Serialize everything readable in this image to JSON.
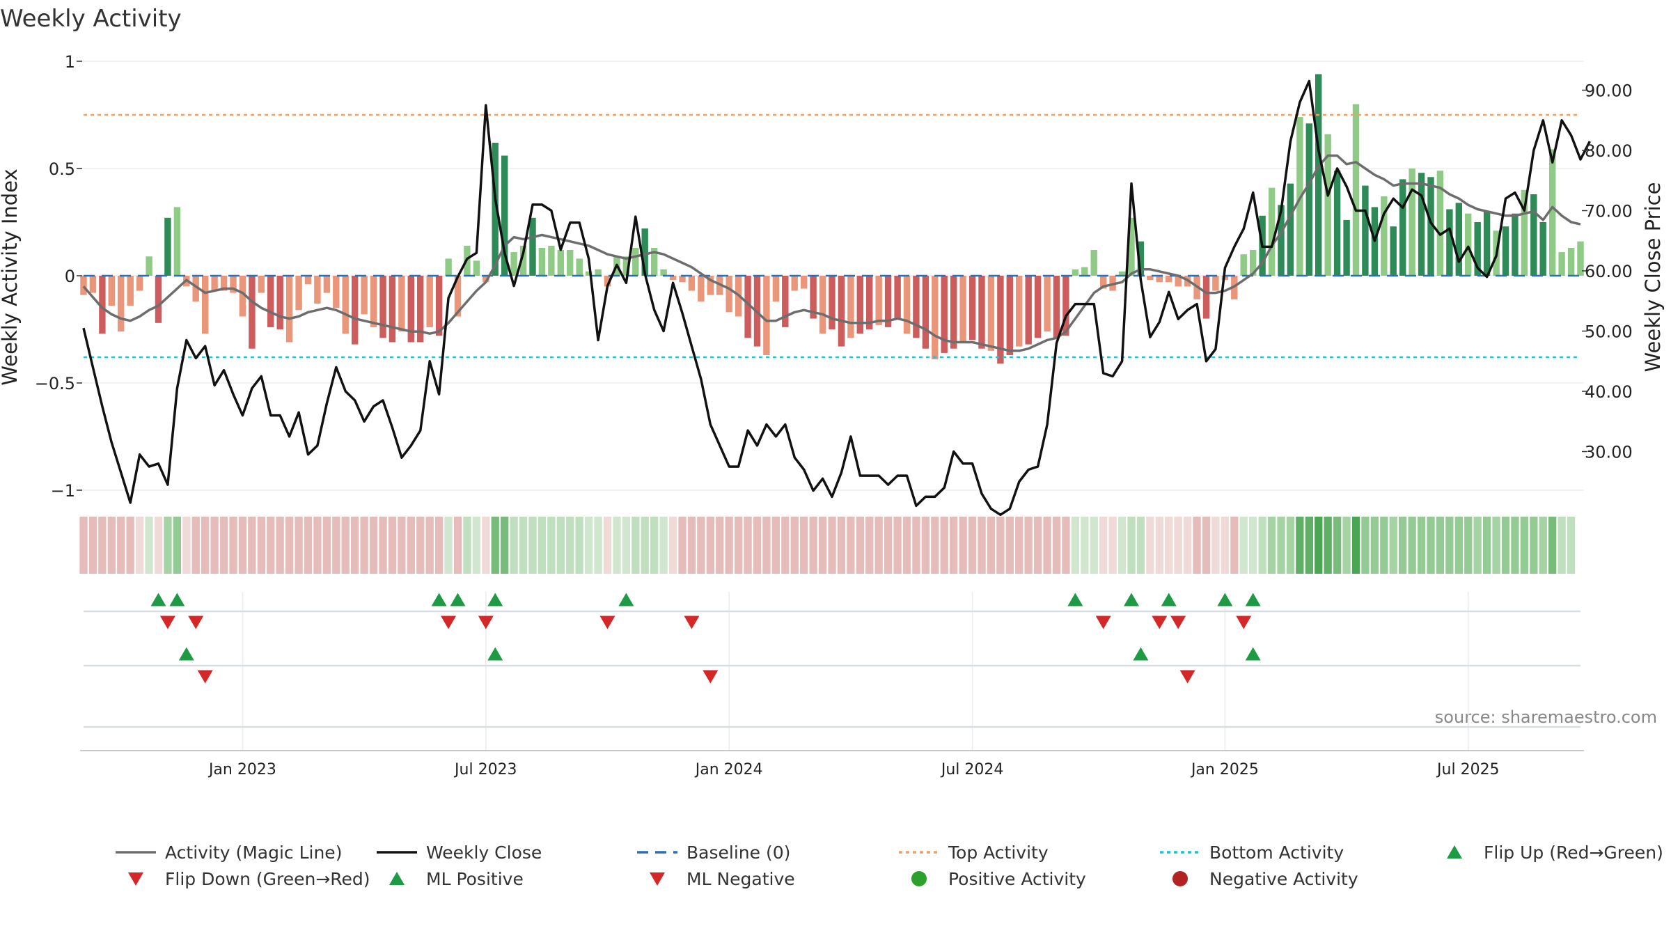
{
  "chart_data": {
    "type": "bar",
    "title": "Weekly Activity",
    "ylabel": "Weekly Activity Index",
    "y2label": "Weekly Close Price",
    "ylim": [
      -1,
      1
    ],
    "y2lim": [
      22,
      95
    ],
    "yticks": [
      {
        "v": 1,
        "label": "1"
      },
      {
        "v": 0.5,
        "label": "0.5"
      },
      {
        "v": 0,
        "label": "0"
      },
      {
        "v": -0.5,
        "label": "−0.5"
      },
      {
        "v": -1,
        "label": "−1"
      }
    ],
    "y2ticks": [
      {
        "v": 90,
        "label": "90.00"
      },
      {
        "v": 80,
        "label": "80.00"
      },
      {
        "v": 70,
        "label": "70.00"
      },
      {
        "v": 60,
        "label": "60.00"
      },
      {
        "v": 50,
        "label": "50.00"
      },
      {
        "v": 40,
        "label": "40.00"
      },
      {
        "v": 30,
        "label": "30.00"
      }
    ],
    "xticks": [
      {
        "week": 17,
        "label": "Jan 2023"
      },
      {
        "week": 43,
        "label": "Jul 2023"
      },
      {
        "week": 69,
        "label": "Jan 2024"
      },
      {
        "week": 95,
        "label": "Jul 2024"
      },
      {
        "week": 122,
        "label": "Jan 2025"
      },
      {
        "week": 148,
        "label": "Jul 2025"
      }
    ],
    "top_activity": 0.75,
    "bottom_activity": -0.38,
    "activity": [
      -0.09,
      -0.08,
      -0.27,
      -0.14,
      -0.26,
      -0.14,
      -0.07,
      0.09,
      -0.22,
      0.27,
      0.32,
      -0.05,
      -0.12,
      -0.27,
      -0.07,
      -0.07,
      -0.08,
      -0.19,
      -0.34,
      -0.08,
      -0.24,
      -0.25,
      -0.31,
      -0.16,
      -0.04,
      -0.13,
      -0.08,
      -0.15,
      -0.27,
      -0.32,
      -0.18,
      -0.24,
      -0.29,
      -0.31,
      -0.26,
      -0.31,
      -0.31,
      -0.24,
      -0.28,
      0.08,
      -0.19,
      0.14,
      0.07,
      -0.03,
      0.62,
      0.56,
      0.11,
      0.14,
      0.27,
      0.13,
      0.14,
      0.12,
      0.12,
      0.08,
      0.02,
      0.03,
      -0.05,
      0.09,
      0.09,
      0.13,
      0.22,
      0.13,
      0.03,
      -0.02,
      -0.03,
      -0.07,
      -0.12,
      -0.09,
      -0.09,
      -0.17,
      -0.19,
      -0.29,
      -0.33,
      -0.37,
      -0.12,
      -0.24,
      -0.07,
      -0.06,
      -0.2,
      -0.27,
      -0.25,
      -0.33,
      -0.29,
      -0.27,
      -0.25,
      -0.23,
      -0.24,
      -0.2,
      -0.27,
      -0.29,
      -0.34,
      -0.39,
      -0.36,
      -0.34,
      -0.31,
      -0.3,
      -0.34,
      -0.35,
      -0.41,
      -0.37,
      -0.33,
      -0.32,
      -0.29,
      -0.26,
      -0.29,
      -0.28,
      0.03,
      0.04,
      0.12,
      -0.06,
      -0.07,
      0.02,
      0.27,
      0.16,
      -0.02,
      -0.03,
      -0.03,
      -0.05,
      -0.05,
      -0.11,
      -0.2,
      -0.07,
      -0.02,
      -0.11,
      0.1,
      0.12,
      0.28,
      0.41,
      0.33,
      0.43,
      0.74,
      0.71,
      0.94,
      0.66,
      0.49,
      0.26,
      0.8,
      0.42,
      0.32,
      0.37,
      0.23,
      0.45,
      0.5,
      0.48,
      0.46,
      0.49,
      0.31,
      0.34,
      0.29,
      0.25,
      0.3,
      0.21,
      0.23,
      0.29,
      0.4,
      0.38,
      0.25,
      0.59,
      0.11,
      0.13,
      0.16
    ],
    "magic_line": [
      -0.05,
      -0.1,
      -0.15,
      -0.18,
      -0.2,
      -0.21,
      -0.19,
      -0.16,
      -0.14,
      -0.1,
      -0.06,
      -0.02,
      -0.05,
      -0.08,
      -0.07,
      -0.06,
      -0.06,
      -0.08,
      -0.12,
      -0.15,
      -0.17,
      -0.19,
      -0.2,
      -0.19,
      -0.17,
      -0.16,
      -0.15,
      -0.16,
      -0.18,
      -0.2,
      -0.21,
      -0.22,
      -0.23,
      -0.24,
      -0.25,
      -0.26,
      -0.26,
      -0.27,
      -0.26,
      -0.22,
      -0.17,
      -0.12,
      -0.07,
      -0.03,
      0.05,
      0.14,
      0.18,
      0.17,
      0.18,
      0.19,
      0.18,
      0.17,
      0.16,
      0.15,
      0.14,
      0.12,
      0.1,
      0.09,
      0.08,
      0.09,
      0.1,
      0.11,
      0.1,
      0.08,
      0.06,
      0.04,
      0.01,
      -0.02,
      -0.04,
      -0.06,
      -0.09,
      -0.13,
      -0.17,
      -0.21,
      -0.21,
      -0.19,
      -0.17,
      -0.16,
      -0.17,
      -0.18,
      -0.2,
      -0.21,
      -0.22,
      -0.22,
      -0.22,
      -0.21,
      -0.21,
      -0.2,
      -0.21,
      -0.23,
      -0.25,
      -0.28,
      -0.3,
      -0.31,
      -0.31,
      -0.31,
      -0.32,
      -0.33,
      -0.34,
      -0.35,
      -0.35,
      -0.34,
      -0.32,
      -0.3,
      -0.29,
      -0.26,
      -0.2,
      -0.14,
      -0.08,
      -0.05,
      -0.04,
      -0.03,
      0.01,
      0.03,
      0.03,
      0.02,
      0.01,
      0.0,
      -0.02,
      -0.05,
      -0.08,
      -0.08,
      -0.07,
      -0.05,
      -0.02,
      0.01,
      0.06,
      0.14,
      0.2,
      0.28,
      0.36,
      0.43,
      0.51,
      0.56,
      0.56,
      0.52,
      0.53,
      0.5,
      0.47,
      0.45,
      0.42,
      0.43,
      0.43,
      0.43,
      0.42,
      0.41,
      0.38,
      0.36,
      0.33,
      0.31,
      0.3,
      0.29,
      0.28,
      0.28,
      0.29,
      0.3,
      0.26,
      0.32,
      0.28,
      0.25,
      0.24
    ],
    "weekly_close": [
      50.5,
      44.0,
      37.5,
      31.5,
      26.5,
      21.5,
      29.5,
      27.5,
      28.0,
      24.5,
      40.5,
      48.5,
      45.5,
      47.5,
      41.0,
      43.5,
      39.5,
      36.0,
      40.5,
      42.5,
      36.0,
      36.0,
      32.5,
      36.5,
      29.5,
      31.0,
      38.0,
      44.0,
      40.0,
      38.5,
      35.0,
      37.5,
      38.5,
      34.0,
      29.0,
      31.0,
      33.5,
      45.0,
      39.5,
      55.5,
      59.0,
      62.0,
      63.0,
      87.5,
      72.0,
      63.0,
      57.5,
      63.0,
      71.0,
      71.0,
      70.0,
      63.5,
      68.0,
      68.0,
      62.0,
      48.5,
      57.5,
      61.0,
      58.0,
      69.0,
      59.5,
      53.5,
      50.0,
      58.0,
      53.0,
      47.5,
      42.0,
      34.5,
      31.0,
      27.5,
      27.5,
      33.5,
      31.0,
      34.5,
      32.5,
      34.5,
      29.0,
      27.0,
      23.5,
      25.5,
      22.5,
      26.5,
      32.5,
      26.0,
      26.0,
      26.0,
      24.5,
      26.0,
      26.0,
      21.0,
      22.5,
      22.5,
      24.0,
      30.0,
      28.0,
      28.0,
      23.0,
      20.5,
      19.5,
      20.5,
      25.0,
      27.0,
      27.5,
      34.5,
      48.0,
      52.5,
      54.5,
      54.5,
      54.5,
      43.0,
      42.5,
      45.0,
      74.5,
      58.5,
      49.0,
      51.5,
      56.5,
      52.0,
      53.5,
      54.5,
      45.0,
      47.0,
      60.5,
      64.0,
      67.0,
      73.0,
      64.0,
      64.0,
      70.0,
      81.5,
      88.0,
      91.5,
      80.0,
      72.5,
      77.0,
      74.0,
      70.0,
      70.0,
      65.0,
      69.5,
      72.0,
      70.5,
      73.5,
      72.5,
      68.0,
      66.0,
      67.0,
      61.5,
      64.0,
      60.5,
      59.0,
      62.5,
      72.0,
      73.0,
      70.0,
      80.0,
      85.0,
      78.0,
      85.0,
      82.5,
      78.5,
      81.5
    ],
    "strip": [
      {
        "w": 0,
        "c": "#e5bcba"
      },
      {
        "w": 1,
        "c": "#e5bcba"
      },
      {
        "w": 2,
        "c": "#e5bcba"
      },
      {
        "w": 3,
        "c": "#e5bcba"
      },
      {
        "w": 4,
        "c": "#e5bcba"
      },
      {
        "w": 5,
        "c": "#e5bcba"
      },
      {
        "w": 6,
        "c": "#efdad7"
      },
      {
        "w": 7,
        "c": "#d0e6cf"
      },
      {
        "w": 8,
        "c": "#efdad7"
      },
      {
        "w": 9,
        "c": "#a6d3a4"
      },
      {
        "w": 10,
        "c": "#94cb95"
      },
      {
        "w": 11,
        "c": "#efdad7"
      },
      {
        "w": 12,
        "c": "#e5bcba"
      },
      {
        "w": 13,
        "c": "#e5bcba"
      },
      {
        "w": 14,
        "c": "#e5bcba"
      },
      {
        "w": 15,
        "c": "#e5bcba"
      },
      {
        "w": 16,
        "c": "#e5bcba"
      },
      {
        "w": 17,
        "c": "#e5bcba"
      },
      {
        "w": 18,
        "c": "#e5bcba"
      },
      {
        "w": 19,
        "c": "#e5bcba"
      },
      {
        "w": 20,
        "c": "#e5bcba"
      },
      {
        "w": 21,
        "c": "#e5bcba"
      },
      {
        "w": 22,
        "c": "#e5bcba"
      },
      {
        "w": 23,
        "c": "#e5bcba"
      },
      {
        "w": 24,
        "c": "#e5bcba"
      },
      {
        "w": 25,
        "c": "#e5bcba"
      },
      {
        "w": 26,
        "c": "#e5bcba"
      },
      {
        "w": 27,
        "c": "#e5bcba"
      },
      {
        "w": 28,
        "c": "#e5bcba"
      },
      {
        "w": 29,
        "c": "#e5bcba"
      },
      {
        "w": 30,
        "c": "#e5bcba"
      },
      {
        "w": 31,
        "c": "#e5bcba"
      },
      {
        "w": 32,
        "c": "#e5bcba"
      },
      {
        "w": 33,
        "c": "#e5bcba"
      },
      {
        "w": 34,
        "c": "#e5bcba"
      },
      {
        "w": 35,
        "c": "#e5bcba"
      },
      {
        "w": 36,
        "c": "#e5bcba"
      },
      {
        "w": 37,
        "c": "#e5bcba"
      },
      {
        "w": 38,
        "c": "#e5bcba"
      },
      {
        "w": 39,
        "c": "#d0e6cf"
      },
      {
        "w": 40,
        "c": "#e5bcba"
      },
      {
        "w": 41,
        "c": "#bfdfbe"
      },
      {
        "w": 42,
        "c": "#d0e6cf"
      },
      {
        "w": 43,
        "c": "#efdad7"
      },
      {
        "w": 44,
        "c": "#78bb7b"
      },
      {
        "w": 45,
        "c": "#78bb7b"
      },
      {
        "w": 46,
        "c": "#bfdfbe"
      },
      {
        "w": 47,
        "c": "#bfdfbe"
      },
      {
        "w": 48,
        "c": "#bfdfbe"
      },
      {
        "w": 49,
        "c": "#bfdfbe"
      },
      {
        "w": 50,
        "c": "#bfdfbe"
      },
      {
        "w": 51,
        "c": "#bfdfbe"
      },
      {
        "w": 52,
        "c": "#bfdfbe"
      },
      {
        "w": 53,
        "c": "#bfdfbe"
      },
      {
        "w": 54,
        "c": "#d0e6cf"
      },
      {
        "w": 55,
        "c": "#d0e6cf"
      },
      {
        "w": 56,
        "c": "#efdad7"
      },
      {
        "w": 57,
        "c": "#d0e6cf"
      },
      {
        "w": 58,
        "c": "#d0e6cf"
      },
      {
        "w": 59,
        "c": "#bfdfbe"
      },
      {
        "w": 60,
        "c": "#bfdfbe"
      },
      {
        "w": 61,
        "c": "#bfdfbe"
      },
      {
        "w": 62,
        "c": "#d0e6cf"
      },
      {
        "w": 63,
        "c": "#efdad7"
      },
      {
        "w": 64,
        "c": "#e5bcba"
      },
      {
        "w": 65,
        "c": "#e5bcba"
      },
      {
        "w": 66,
        "c": "#e5bcba"
      },
      {
        "w": 67,
        "c": "#e5bcba"
      },
      {
        "w": 68,
        "c": "#e5bcba"
      },
      {
        "w": 69,
        "c": "#e5bcba"
      },
      {
        "w": 70,
        "c": "#e5bcba"
      },
      {
        "w": 71,
        "c": "#e5bcba"
      },
      {
        "w": 72,
        "c": "#e5bcba"
      },
      {
        "w": 73,
        "c": "#e5bcba"
      },
      {
        "w": 74,
        "c": "#e5bcba"
      },
      {
        "w": 75,
        "c": "#e5bcba"
      },
      {
        "w": 76,
        "c": "#e5bcba"
      },
      {
        "w": 77,
        "c": "#e5bcba"
      },
      {
        "w": 78,
        "c": "#e5bcba"
      },
      {
        "w": 79,
        "c": "#e5bcba"
      },
      {
        "w": 80,
        "c": "#e5bcba"
      },
      {
        "w": 81,
        "c": "#e5bcba"
      },
      {
        "w": 82,
        "c": "#e5bcba"
      },
      {
        "w": 83,
        "c": "#e5bcba"
      },
      {
        "w": 84,
        "c": "#e5bcba"
      },
      {
        "w": 85,
        "c": "#e5bcba"
      },
      {
        "w": 86,
        "c": "#e5bcba"
      },
      {
        "w": 87,
        "c": "#e5bcba"
      },
      {
        "w": 88,
        "c": "#e5bcba"
      },
      {
        "w": 89,
        "c": "#e5bcba"
      },
      {
        "w": 90,
        "c": "#e5bcba"
      },
      {
        "w": 91,
        "c": "#e5bcba"
      },
      {
        "w": 92,
        "c": "#e5bcba"
      },
      {
        "w": 93,
        "c": "#e5bcba"
      },
      {
        "w": 94,
        "c": "#e5bcba"
      },
      {
        "w": 95,
        "c": "#e5bcba"
      },
      {
        "w": 96,
        "c": "#e5bcba"
      },
      {
        "w": 97,
        "c": "#e5bcba"
      },
      {
        "w": 98,
        "c": "#e5bcba"
      },
      {
        "w": 99,
        "c": "#e5bcba"
      },
      {
        "w": 100,
        "c": "#e5bcba"
      },
      {
        "w": 101,
        "c": "#e5bcba"
      },
      {
        "w": 102,
        "c": "#e5bcba"
      },
      {
        "w": 103,
        "c": "#e5bcba"
      },
      {
        "w": 104,
        "c": "#e5bcba"
      },
      {
        "w": 105,
        "c": "#e5bcba"
      },
      {
        "w": 106,
        "c": "#d0e6cf"
      },
      {
        "w": 107,
        "c": "#d0e6cf"
      },
      {
        "w": 108,
        "c": "#d0e6cf"
      },
      {
        "w": 109,
        "c": "#efdad7"
      },
      {
        "w": 110,
        "c": "#efdad7"
      },
      {
        "w": 111,
        "c": "#d0e6cf"
      },
      {
        "w": 112,
        "c": "#bfdfbe"
      },
      {
        "w": 113,
        "c": "#bfdfbe"
      },
      {
        "w": 114,
        "c": "#efdad7"
      },
      {
        "w": 115,
        "c": "#efdad7"
      },
      {
        "w": 116,
        "c": "#efdad7"
      },
      {
        "w": 117,
        "c": "#efdad7"
      },
      {
        "w": 118,
        "c": "#efdad7"
      },
      {
        "w": 119,
        "c": "#e5bcba"
      },
      {
        "w": 120,
        "c": "#e5bcba"
      },
      {
        "w": 121,
        "c": "#efdad7"
      },
      {
        "w": 122,
        "c": "#efdad7"
      },
      {
        "w": 123,
        "c": "#e5bcba"
      },
      {
        "w": 124,
        "c": "#d0e6cf"
      },
      {
        "w": 125,
        "c": "#d0e6cf"
      },
      {
        "w": 126,
        "c": "#bfdfbe"
      },
      {
        "w": 127,
        "c": "#a6d3a4"
      },
      {
        "w": 128,
        "c": "#a6d3a4"
      },
      {
        "w": 129,
        "c": "#a6d3a4"
      },
      {
        "w": 130,
        "c": "#5faf66"
      },
      {
        "w": 131,
        "c": "#5faf66"
      },
      {
        "w": 132,
        "c": "#4aa653"
      },
      {
        "w": 133,
        "c": "#5faf66"
      },
      {
        "w": 134,
        "c": "#78bb7b"
      },
      {
        "w": 135,
        "c": "#a6d3a4"
      },
      {
        "w": 136,
        "c": "#4aa653"
      },
      {
        "w": 137,
        "c": "#94cb95"
      },
      {
        "w": 138,
        "c": "#94cb95"
      },
      {
        "w": 139,
        "c": "#94cb95"
      },
      {
        "w": 140,
        "c": "#a6d3a4"
      },
      {
        "w": 141,
        "c": "#94cb95"
      },
      {
        "w": 142,
        "c": "#94cb95"
      },
      {
        "w": 143,
        "c": "#94cb95"
      },
      {
        "w": 144,
        "c": "#94cb95"
      },
      {
        "w": 145,
        "c": "#94cb95"
      },
      {
        "w": 146,
        "c": "#94cb95"
      },
      {
        "w": 147,
        "c": "#94cb95"
      },
      {
        "w": 148,
        "c": "#94cb95"
      },
      {
        "w": 149,
        "c": "#a6d3a4"
      },
      {
        "w": 150,
        "c": "#94cb95"
      },
      {
        "w": 151,
        "c": "#a6d3a4"
      },
      {
        "w": 152,
        "c": "#94cb95"
      },
      {
        "w": 153,
        "c": "#94cb95"
      },
      {
        "w": 154,
        "c": "#94cb95"
      },
      {
        "w": 155,
        "c": "#94cb95"
      },
      {
        "w": 156,
        "c": "#a6d3a4"
      },
      {
        "w": 157,
        "c": "#78bb7b"
      },
      {
        "w": 158,
        "c": "#bfdfbe"
      },
      {
        "w": 159,
        "c": "#bfdfbe"
      }
    ],
    "flip_up": [
      8,
      10,
      38,
      40,
      44,
      58,
      106,
      112,
      116,
      122,
      125
    ],
    "flip_down": [
      9,
      12,
      39,
      43,
      56,
      65,
      109,
      115,
      117,
      124
    ],
    "ml_positive": [
      11,
      44,
      113,
      125
    ],
    "ml_negative": [
      13,
      67,
      118
    ],
    "source": "source: sharemaestro.com",
    "legend": [
      {
        "label": "Activity (Magic Line)",
        "kind": "line",
        "color": "#6d6d6d"
      },
      {
        "label": "Weekly Close",
        "kind": "line",
        "color": "#111111"
      },
      {
        "label": "Baseline (0)",
        "kind": "dash",
        "color": "#2c6fb3"
      },
      {
        "label": "Top Activity",
        "kind": "dot",
        "color": "#f0a060"
      },
      {
        "label": "Bottom Activity",
        "kind": "dot",
        "color": "#27c2d0"
      },
      {
        "label": "Flip Up (Red→Green)",
        "kind": "up",
        "color": "#1e9a45"
      },
      {
        "label": "Flip Down (Green→Red)",
        "kind": "down",
        "color": "#d62728"
      },
      {
        "label": "ML Positive",
        "kind": "up",
        "color": "#1e9a45"
      },
      {
        "label": "ML Negative",
        "kind": "down",
        "color": "#d62728"
      },
      {
        "label": "Positive Activity",
        "kind": "circle",
        "color": "#2ca02c"
      },
      {
        "label": "Negative Activity",
        "kind": "circle",
        "color": "#b22222"
      }
    ],
    "colors": {
      "pos_dark": "#2e8b57",
      "pos_light": "#8fca87",
      "neg_dark": "#cd5c5c",
      "neg_light": "#e9967a",
      "magic": "#6d6d6d",
      "close": "#111111",
      "baseline": "#2c6fb3",
      "top": "#f0a060",
      "bottom": "#27c2d0",
      "up": "#1e9a45",
      "down": "#d62728"
    }
  }
}
